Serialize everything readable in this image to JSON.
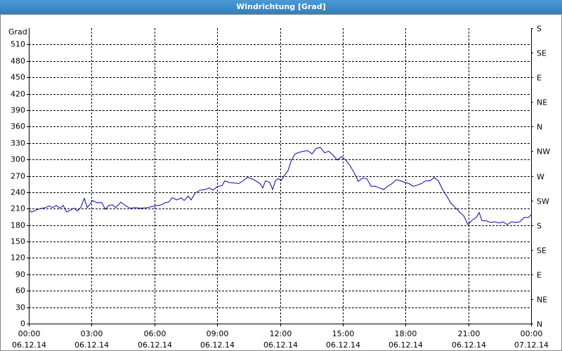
{
  "chart_data": {
    "type": "line",
    "title": "Windrichtung [Grad]",
    "ylabel": "Grad",
    "color": "#0000c8",
    "grid": true,
    "xlim": [
      0,
      24
    ],
    "xticks": [
      {
        "value": 0,
        "label": "00:00\n06.12.14"
      },
      {
        "value": 3,
        "label": "03:00\n06.12.14"
      },
      {
        "value": 6,
        "label": "06:00\n06.12.14"
      },
      {
        "value": 9,
        "label": "09:00\n06.12.14"
      },
      {
        "value": 12,
        "label": "12:00\n06.12.14"
      },
      {
        "value": 15,
        "label": "15:00\n06.12.14"
      },
      {
        "value": 18,
        "label": "18:00\n06.12.14"
      },
      {
        "value": 21,
        "label": "21:00\n06.12.14"
      },
      {
        "value": 24,
        "label": "00:00\n07.12.14"
      }
    ],
    "ylim": [
      0,
      540
    ],
    "yticks": [
      0,
      30,
      60,
      90,
      120,
      150,
      180,
      210,
      240,
      270,
      300,
      330,
      360,
      390,
      420,
      450,
      480,
      510
    ],
    "y2lim": [
      0,
      540
    ],
    "y2ticks": [
      {
        "value": 0,
        "label": "N"
      },
      {
        "value": 45,
        "label": "NE"
      },
      {
        "value": 90,
        "label": "E"
      },
      {
        "value": 135,
        "label": "SE"
      },
      {
        "value": 180,
        "label": "S"
      },
      {
        "value": 225,
        "label": "SW"
      },
      {
        "value": 270,
        "label": "W"
      },
      {
        "value": 315,
        "label": "NW"
      },
      {
        "value": 360,
        "label": "N"
      },
      {
        "value": 405,
        "label": "NE"
      },
      {
        "value": 450,
        "label": "E"
      },
      {
        "value": 495,
        "label": "SE"
      },
      {
        "value": 540,
        "label": "S"
      }
    ],
    "x": [
      0,
      0.13,
      0.37,
      0.64,
      0.81,
      0.97,
      1.14,
      1.31,
      1.48,
      1.64,
      1.81,
      1.98,
      2.15,
      2.32,
      2.48,
      2.65,
      2.79,
      2.92,
      3.05,
      3.26,
      3.49,
      3.66,
      3.83,
      3.99,
      4.16,
      4.4,
      4.6,
      4.83,
      5.07,
      5.34,
      5.67,
      6.01,
      6.34,
      6.51,
      6.68,
      6.85,
      7.08,
      7.28,
      7.42,
      7.62,
      7.75,
      7.96,
      8.19,
      8.43,
      8.63,
      8.8,
      9.03,
      9.23,
      9.37,
      9.57,
      9.77,
      10.04,
      10.24,
      10.44,
      10.64,
      10.84,
      11.04,
      11.18,
      11.31,
      11.51,
      11.65,
      11.78,
      11.92,
      12.05,
      12.22,
      12.39,
      12.55,
      12.72,
      12.92,
      13.13,
      13.33,
      13.53,
      13.73,
      13.93,
      14.13,
      14.33,
      14.53,
      14.74,
      14.94,
      15.14,
      15.34,
      15.54,
      15.74,
      15.95,
      16.15,
      16.35,
      16.55,
      16.75,
      16.95,
      17.15,
      17.36,
      17.56,
      17.76,
      17.96,
      18.16,
      18.36,
      18.56,
      18.76,
      18.97,
      19.17,
      19.37,
      19.57,
      19.77,
      19.97,
      20.17,
      20.38,
      20.58,
      20.78,
      20.98,
      21.18,
      21.38,
      21.52,
      21.65,
      21.85,
      22.05,
      22.26,
      22.46,
      22.66,
      22.86,
      23.06,
      23.26,
      23.46,
      23.67,
      23.87,
      24
    ],
    "values": [
      207,
      204,
      208,
      211,
      212,
      215,
      212,
      216,
      211,
      216,
      204,
      207,
      211,
      206,
      212,
      229,
      212,
      218,
      225,
      221,
      221,
      209,
      216,
      217,
      212,
      222,
      216,
      211,
      212,
      211,
      212,
      215,
      217,
      221,
      222,
      230,
      226,
      230,
      225,
      233,
      226,
      239,
      244,
      245,
      248,
      244,
      251,
      252,
      261,
      258,
      257,
      256,
      261,
      267,
      265,
      261,
      256,
      248,
      261,
      258,
      245,
      261,
      265,
      261,
      271,
      280,
      299,
      310,
      313,
      315,
      316,
      310,
      320,
      322,
      312,
      315,
      308,
      299,
      305,
      299,
      289,
      276,
      260,
      266,
      265,
      251,
      251,
      248,
      245,
      251,
      256,
      263,
      261,
      258,
      256,
      251,
      253,
      256,
      261,
      261,
      267,
      261,
      245,
      233,
      220,
      212,
      204,
      197,
      181,
      189,
      194,
      203,
      188,
      188,
      185,
      186,
      184,
      186,
      181,
      186,
      185,
      186,
      194,
      194,
      199
    ]
  }
}
